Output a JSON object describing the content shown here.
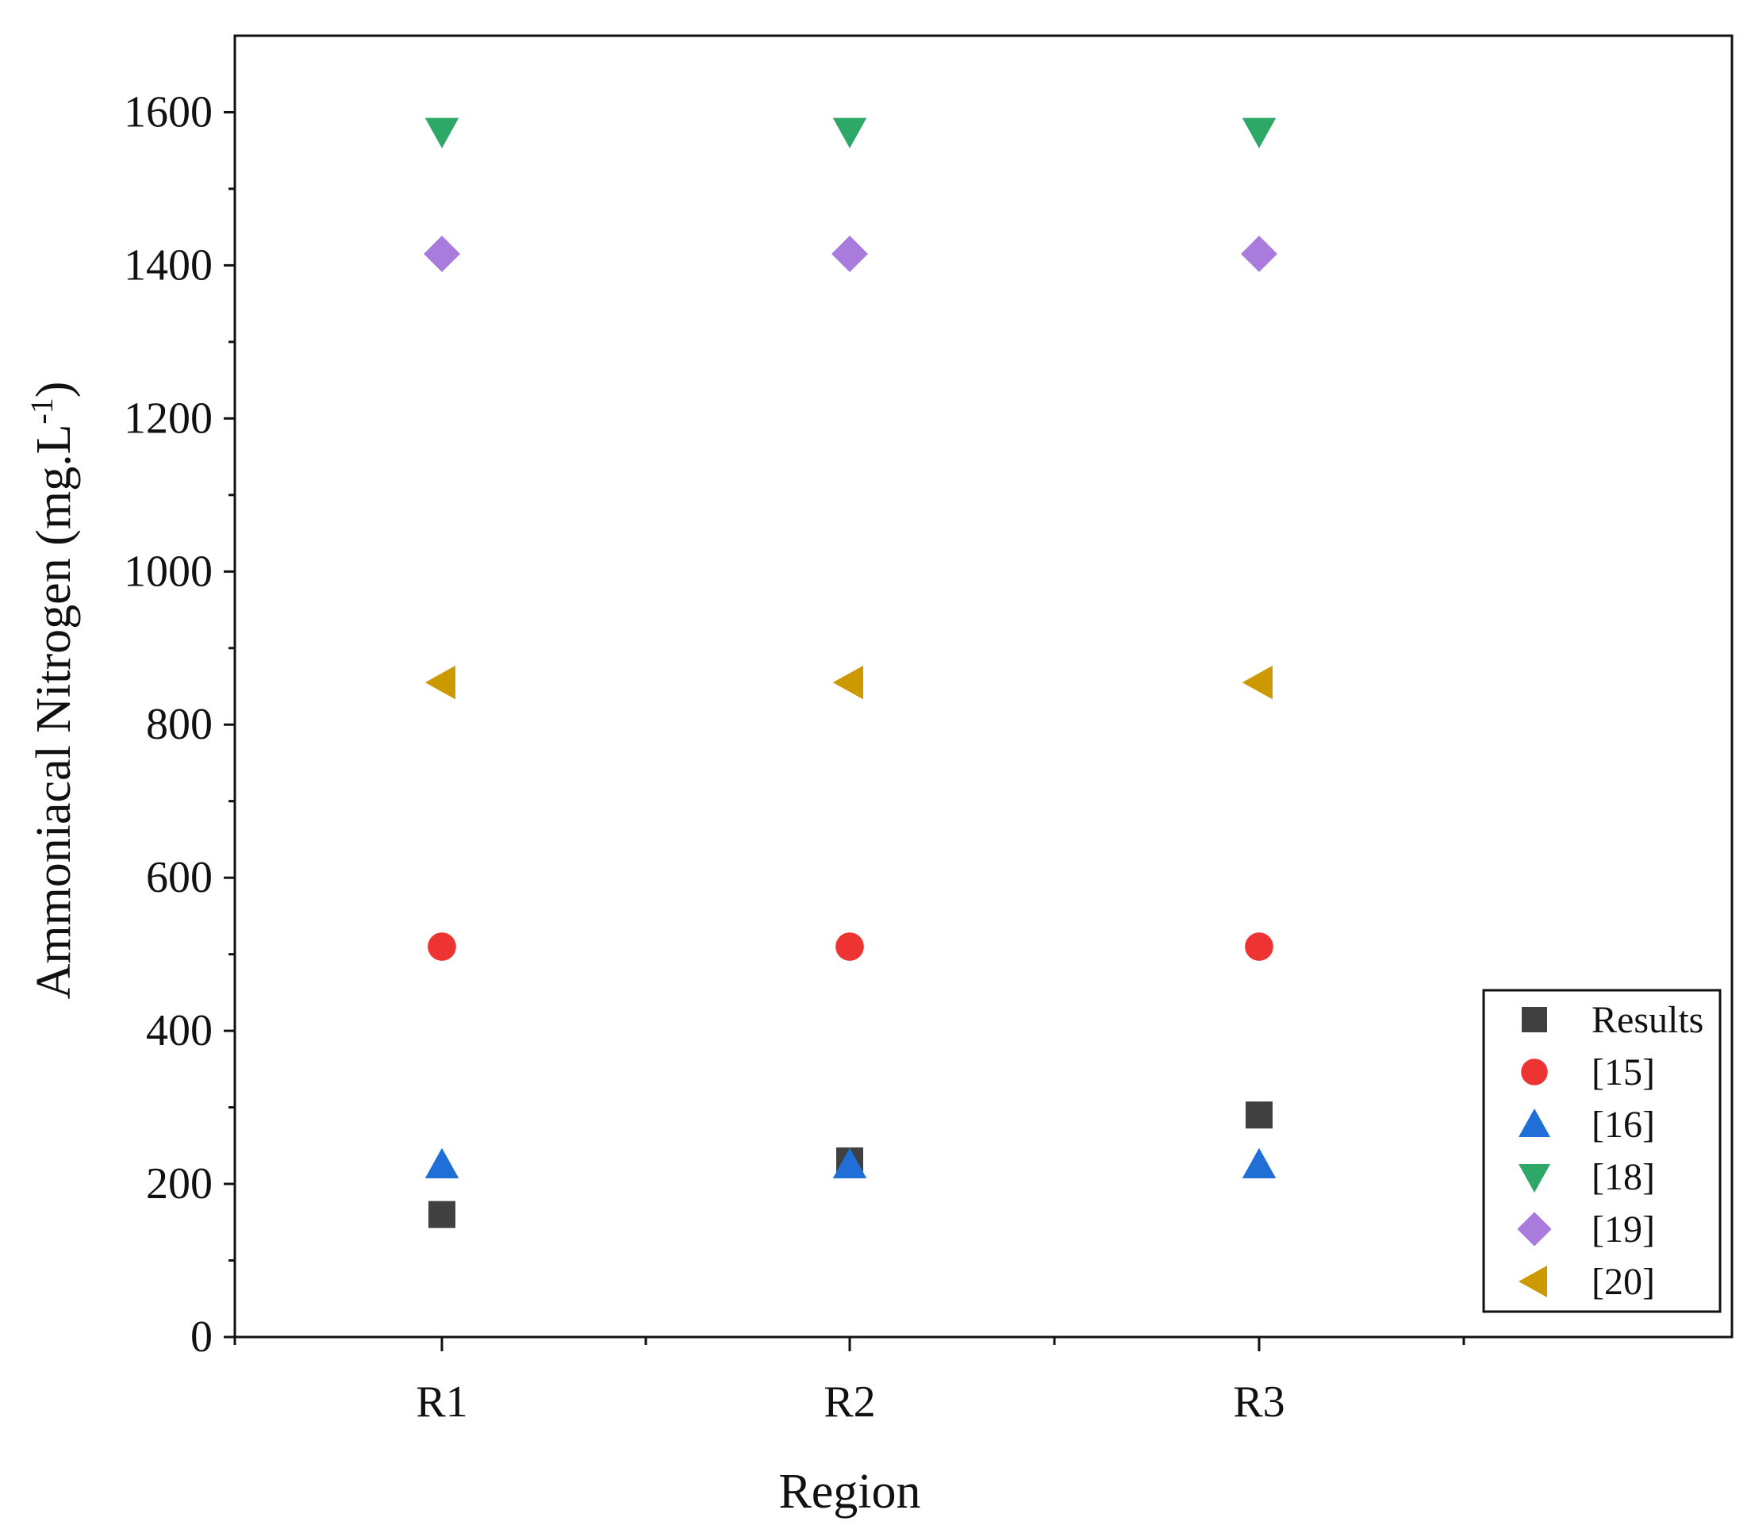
{
  "chart_data": {
    "type": "scatter",
    "xlabel": "Region",
    "ylabel": "Ammoniacal Nitrogen (mg.L",
    "ylabel_sup": "-1",
    "ylabel_close": ")",
    "categories": [
      "R1",
      "R2",
      "R3"
    ],
    "ylim": [
      0,
      1700
    ],
    "yticks": [
      0,
      200,
      400,
      600,
      800,
      1000,
      1200,
      1400,
      1600
    ],
    "legend_position": "bottom-right",
    "series": [
      {
        "name": "Results",
        "marker": "square",
        "color": "#404040",
        "values": [
          160,
          230,
          290
        ]
      },
      {
        "name": "[15]",
        "marker": "circle",
        "color": "#ee3333",
        "values": [
          510,
          510,
          510
        ]
      },
      {
        "name": "[16]",
        "marker": "triangle-up",
        "color": "#1f6fd6",
        "values": [
          225,
          225,
          225
        ]
      },
      {
        "name": "[18]",
        "marker": "triangle-down",
        "color": "#2ea866",
        "values": [
          1575,
          1575,
          1575
        ]
      },
      {
        "name": "[19]",
        "marker": "diamond",
        "color": "#a87bdc",
        "values": [
          1415,
          1415,
          1415
        ]
      },
      {
        "name": "[20]",
        "marker": "triangle-left",
        "color": "#cc9900",
        "values": [
          855,
          855,
          855
        ]
      }
    ]
  }
}
